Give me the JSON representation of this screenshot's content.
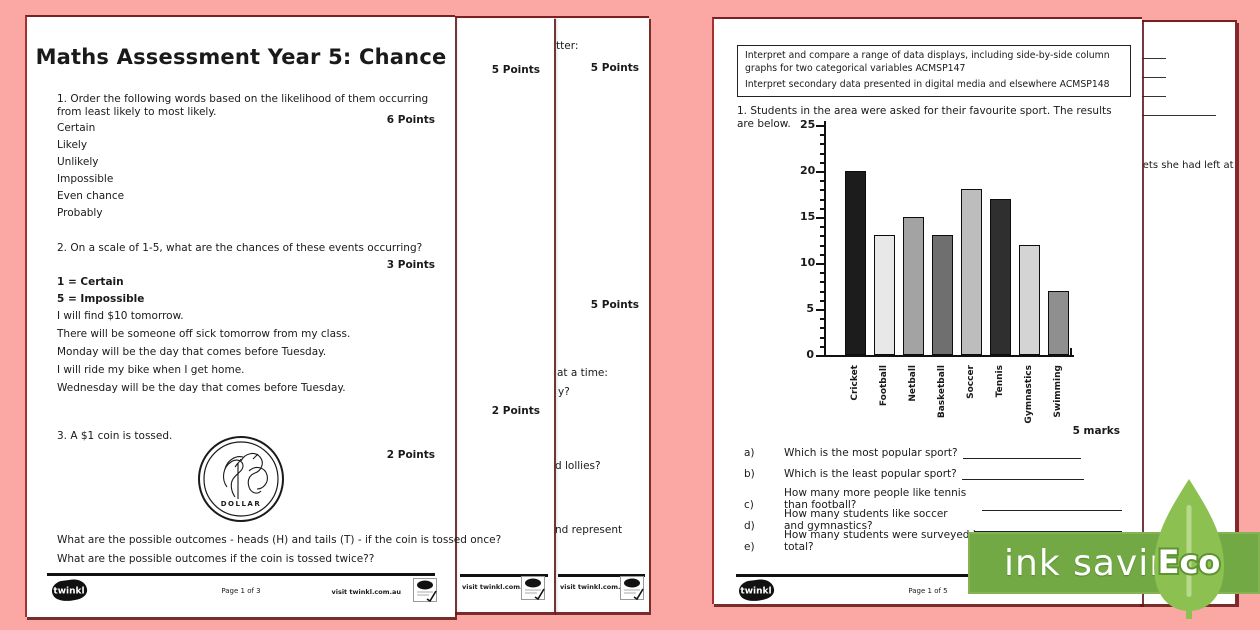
{
  "palette": {
    "background_pink": "#fba7a3",
    "maroon_edge": "#7a2022",
    "red_edge": "#a63230",
    "banner_green": "#73a944",
    "leaf_green": "#8cc152",
    "stem_green": "#b7d98c",
    "ink_black": "#1a1a1a"
  },
  "left_page": {
    "title": "Maths Assessment Year 5: Chance",
    "q1": {
      "text": "1.  Order the following words based on the likelihood of them occurring from least likely to most likely.",
      "points": "6 Points",
      "options": [
        "Certain",
        "Likely",
        "Unlikely",
        "Impossible",
        "Even chance",
        "Probably"
      ]
    },
    "q2": {
      "text": "2.  On a scale of 1-5, what are the chances of these events occurring?",
      "points": "3 Points",
      "scale": [
        "1 = Certain",
        "5 = Impossible"
      ],
      "events": [
        "I will find $10 tomorrow.",
        "There will be someone off sick tomorrow from my class.",
        "Monday will be the day that comes before Tuesday.",
        "I will ride my bike when I get home.",
        "Wednesday will be the day that comes before Tuesday."
      ]
    },
    "q3": {
      "text": "3.  A $1 coin is tossed.",
      "points": "2 Points",
      "coin_label": "DOLLAR",
      "questions": [
        "What are the possible outcomes - heads (H) and tails (T) - if the coin is tossed once?",
        "What are the possible outcomes if the coin is tossed twice??"
      ]
    },
    "footer": {
      "logo": "twinkl",
      "page": "Page 1 of 3",
      "visit": "visit twinkl.com.au"
    }
  },
  "stack_page2": {
    "points_top": "5 Points",
    "points_bottom": "2 Points",
    "footer_visit": "visit twinkl.com.au"
  },
  "stack_page3": {
    "fragment_letter": "tter:",
    "points_top": "5 Points",
    "points_mid": "5 Points",
    "fragment_time": "at a time:",
    "fragment_y": "y?",
    "fragment_lollies": "d lollies?",
    "fragment_represent": "nd represent",
    "footer_visit": "visit twinkl.com.au"
  },
  "right_page": {
    "standards": [
      "Interpret and compare a range of data displays, including side-by-side column graphs for two categorical variables ACMSP147",
      "Interpret secondary data presented in digital media and elsewhere ACMSP148"
    ],
    "q1_text": "1.  Students in the area were asked for their favourite sport. The results are below.",
    "marks": "5 marks",
    "questions": [
      {
        "label": "a)",
        "text": "Which is the most popular sport?"
      },
      {
        "label": "b)",
        "text": "Which is the least popular sport?"
      },
      {
        "label": "c)",
        "text": "How many more people like tennis than football?"
      },
      {
        "label": "d)",
        "text": "How many students like soccer and gymnastics?"
      },
      {
        "label": "e)",
        "text": "How many students were surveyed in total?"
      }
    ],
    "footer": {
      "logo": "twinkl",
      "page": "Page 1 of 5"
    }
  },
  "behind_right_page": {
    "fragment": "lets she had left at"
  },
  "chart_data": {
    "type": "bar",
    "categories": [
      "Cricket",
      "Football",
      "Netball",
      "Basketball",
      "Soccer",
      "Tennis",
      "Gymnastics",
      "Swimming"
    ],
    "values": [
      20,
      13,
      15,
      13,
      18,
      17,
      12,
      7
    ],
    "bar_colors": [
      "#1c1c1c",
      "#e8e8e8",
      "#a3a3a3",
      "#6f6f6f",
      "#bdbdbd",
      "#2f2f2f",
      "#d4d4d4",
      "#8f8f8f"
    ],
    "title": "",
    "xlabel": "",
    "ylabel": "",
    "ylim": [
      0,
      25
    ],
    "yticks": [
      0,
      5,
      10,
      15,
      20,
      25
    ],
    "grid": false,
    "legend": "none"
  },
  "eco_badge": {
    "label": "ink saving",
    "eco": "Eco"
  }
}
